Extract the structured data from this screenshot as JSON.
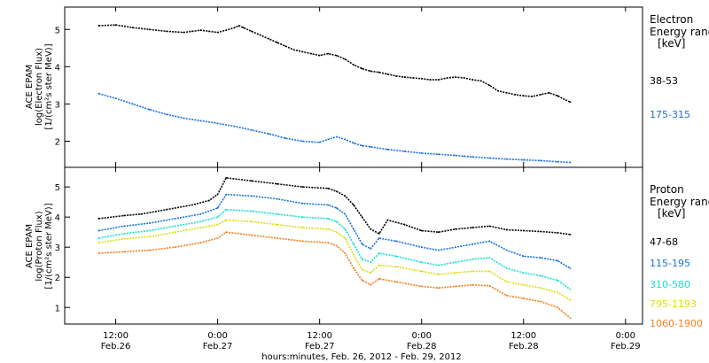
{
  "chart_data": [
    {
      "type": "scatter",
      "panel": "electron",
      "ylabel_lines": [
        "ACE EPAM",
        "log(Electron Flux)",
        "[1/(cm²s ster MeV)]"
      ],
      "ylim": [
        1.3,
        5.6
      ],
      "yticks": [
        2,
        3,
        4,
        5
      ],
      "legend_title_lines": [
        "Electron",
        "Energy range",
        "[keV]"
      ],
      "series": [
        {
          "name": "38-53",
          "color": "#000000",
          "points": [
            [
              0,
              5.1
            ],
            [
              4,
              5.12
            ],
            [
              8,
              5.05
            ],
            [
              12,
              5.0
            ],
            [
              16,
              4.95
            ],
            [
              20,
              4.92
            ],
            [
              22,
              4.95
            ],
            [
              24,
              4.98
            ],
            [
              26,
              4.95
            ],
            [
              28,
              4.92
            ],
            [
              30,
              4.98
            ],
            [
              32,
              5.05
            ],
            [
              33,
              5.1
            ],
            [
              34,
              5.05
            ],
            [
              36,
              4.95
            ],
            [
              38,
              4.85
            ],
            [
              40,
              4.75
            ],
            [
              42,
              4.65
            ],
            [
              44,
              4.55
            ],
            [
              46,
              4.45
            ],
            [
              48,
              4.4
            ],
            [
              50,
              4.35
            ],
            [
              52,
              4.3
            ],
            [
              54,
              4.35
            ],
            [
              56,
              4.3
            ],
            [
              58,
              4.2
            ],
            [
              60,
              4.05
            ],
            [
              62,
              3.95
            ],
            [
              64,
              3.88
            ],
            [
              66,
              3.85
            ],
            [
              68,
              3.8
            ],
            [
              70,
              3.75
            ],
            [
              72,
              3.72
            ],
            [
              74,
              3.7
            ],
            [
              76,
              3.68
            ],
            [
              78,
              3.65
            ],
            [
              80,
              3.65
            ],
            [
              82,
              3.7
            ],
            [
              84,
              3.72
            ],
            [
              86,
              3.7
            ],
            [
              88,
              3.65
            ],
            [
              90,
              3.62
            ],
            [
              92,
              3.5
            ],
            [
              94,
              3.35
            ],
            [
              96,
              3.3
            ],
            [
              98,
              3.25
            ],
            [
              100,
              3.22
            ],
            [
              102,
              3.2
            ],
            [
              104,
              3.25
            ],
            [
              106,
              3.3
            ],
            [
              108,
              3.22
            ],
            [
              110,
              3.1
            ],
            [
              111,
              3.05
            ]
          ]
        },
        {
          "name": "175-315",
          "color": "#1a73d9",
          "points": [
            [
              0,
              3.28
            ],
            [
              4,
              3.15
            ],
            [
              8,
              3.0
            ],
            [
              12,
              2.85
            ],
            [
              16,
              2.72
            ],
            [
              20,
              2.62
            ],
            [
              24,
              2.55
            ],
            [
              28,
              2.48
            ],
            [
              32,
              2.4
            ],
            [
              36,
              2.3
            ],
            [
              40,
              2.2
            ],
            [
              44,
              2.08
            ],
            [
              48,
              2.0
            ],
            [
              52,
              1.97
            ],
            [
              54,
              2.05
            ],
            [
              56,
              2.12
            ],
            [
              58,
              2.05
            ],
            [
              60,
              1.95
            ],
            [
              62,
              1.88
            ],
            [
              64,
              1.85
            ],
            [
              68,
              1.78
            ],
            [
              72,
              1.73
            ],
            [
              76,
              1.68
            ],
            [
              80,
              1.65
            ],
            [
              84,
              1.62
            ],
            [
              86,
              1.6
            ],
            [
              88,
              1.58
            ],
            [
              92,
              1.55
            ],
            [
              96,
              1.52
            ],
            [
              100,
              1.5
            ],
            [
              104,
              1.48
            ],
            [
              108,
              1.45
            ],
            [
              111,
              1.43
            ]
          ]
        }
      ]
    },
    {
      "type": "scatter",
      "panel": "proton",
      "ylabel_lines": [
        "ACE EPAM",
        "log(Proton Flux)",
        "[1/(cm²s ster MeV)]"
      ],
      "ylim": [
        0.45,
        5.65
      ],
      "yticks": [
        1,
        2,
        3,
        4,
        5
      ],
      "legend_title_lines": [
        "Proton",
        "Energy range",
        "[keV]"
      ],
      "series": [
        {
          "name": "47-68",
          "color": "#000000",
          "points": [
            [
              0,
              3.95
            ],
            [
              6,
              4.05
            ],
            [
              10,
              4.1
            ],
            [
              16,
              4.25
            ],
            [
              22,
              4.4
            ],
            [
              26,
              4.55
            ],
            [
              28,
              4.75
            ],
            [
              30,
              5.3
            ],
            [
              36,
              5.2
            ],
            [
              42,
              5.1
            ],
            [
              48,
              5.0
            ],
            [
              54,
              4.95
            ],
            [
              56,
              4.85
            ],
            [
              58,
              4.7
            ],
            [
              60,
              4.4
            ],
            [
              62,
              4.0
            ],
            [
              64,
              3.6
            ],
            [
              66,
              3.45
            ],
            [
              68,
              3.9
            ],
            [
              72,
              3.75
            ],
            [
              76,
              3.55
            ],
            [
              80,
              3.5
            ],
            [
              84,
              3.6
            ],
            [
              88,
              3.65
            ],
            [
              92,
              3.7
            ],
            [
              96,
              3.58
            ],
            [
              100,
              3.55
            ],
            [
              104,
              3.52
            ],
            [
              108,
              3.48
            ],
            [
              111,
              3.42
            ]
          ]
        },
        {
          "name": "115-195",
          "color": "#1a73d9",
          "points": [
            [
              0,
              3.55
            ],
            [
              6,
              3.7
            ],
            [
              12,
              3.8
            ],
            [
              18,
              3.95
            ],
            [
              24,
              4.1
            ],
            [
              28,
              4.3
            ],
            [
              30,
              4.75
            ],
            [
              36,
              4.7
            ],
            [
              42,
              4.6
            ],
            [
              48,
              4.45
            ],
            [
              54,
              4.4
            ],
            [
              56,
              4.3
            ],
            [
              58,
              4.1
            ],
            [
              60,
              3.6
            ],
            [
              62,
              3.1
            ],
            [
              64,
              2.95
            ],
            [
              66,
              3.3
            ],
            [
              70,
              3.2
            ],
            [
              76,
              3.0
            ],
            [
              80,
              2.9
            ],
            [
              84,
              3.0
            ],
            [
              88,
              3.1
            ],
            [
              92,
              3.2
            ],
            [
              96,
              2.9
            ],
            [
              100,
              2.7
            ],
            [
              104,
              2.65
            ],
            [
              108,
              2.55
            ],
            [
              111,
              2.3
            ]
          ]
        },
        {
          "name": "310-580",
          "color": "#19e0d0",
          "points": [
            [
              0,
              3.3
            ],
            [
              6,
              3.45
            ],
            [
              12,
              3.55
            ],
            [
              18,
              3.7
            ],
            [
              24,
              3.85
            ],
            [
              28,
              4.0
            ],
            [
              30,
              4.25
            ],
            [
              36,
              4.2
            ],
            [
              42,
              4.1
            ],
            [
              48,
              4.0
            ],
            [
              54,
              3.95
            ],
            [
              56,
              3.85
            ],
            [
              58,
              3.6
            ],
            [
              60,
              3.1
            ],
            [
              62,
              2.6
            ],
            [
              64,
              2.5
            ],
            [
              66,
              2.8
            ],
            [
              70,
              2.7
            ],
            [
              76,
              2.5
            ],
            [
              80,
              2.4
            ],
            [
              84,
              2.5
            ],
            [
              88,
              2.6
            ],
            [
              92,
              2.65
            ],
            [
              96,
              2.3
            ],
            [
              100,
              2.15
            ],
            [
              104,
              2.05
            ],
            [
              108,
              1.9
            ],
            [
              111,
              1.6
            ]
          ]
        },
        {
          "name": "795-1193",
          "color": "#d8e010",
          "points": [
            [
              0,
              3.15
            ],
            [
              6,
              3.28
            ],
            [
              12,
              3.35
            ],
            [
              18,
              3.5
            ],
            [
              24,
              3.65
            ],
            [
              28,
              3.75
            ],
            [
              30,
              3.9
            ],
            [
              36,
              3.85
            ],
            [
              42,
              3.75
            ],
            [
              48,
              3.65
            ],
            [
              54,
              3.6
            ],
            [
              56,
              3.5
            ],
            [
              58,
              3.3
            ],
            [
              60,
              2.75
            ],
            [
              62,
              2.25
            ],
            [
              64,
              2.15
            ],
            [
              66,
              2.4
            ],
            [
              70,
              2.35
            ],
            [
              76,
              2.2
            ],
            [
              80,
              2.1
            ],
            [
              84,
              2.15
            ],
            [
              88,
              2.2
            ],
            [
              92,
              2.2
            ],
            [
              96,
              1.85
            ],
            [
              100,
              1.75
            ],
            [
              104,
              1.65
            ],
            [
              108,
              1.5
            ],
            [
              111,
              1.25
            ]
          ]
        },
        {
          "name": "1060-1900",
          "color": "#f08020",
          "points": [
            [
              0,
              2.8
            ],
            [
              6,
              2.85
            ],
            [
              12,
              2.9
            ],
            [
              18,
              3.0
            ],
            [
              24,
              3.15
            ],
            [
              28,
              3.3
            ],
            [
              30,
              3.5
            ],
            [
              36,
              3.4
            ],
            [
              42,
              3.3
            ],
            [
              48,
              3.2
            ],
            [
              54,
              3.15
            ],
            [
              56,
              3.05
            ],
            [
              58,
              2.8
            ],
            [
              60,
              2.3
            ],
            [
              62,
              1.9
            ],
            [
              64,
              1.75
            ],
            [
              66,
              1.95
            ],
            [
              70,
              1.85
            ],
            [
              76,
              1.7
            ],
            [
              80,
              1.65
            ],
            [
              84,
              1.7
            ],
            [
              88,
              1.75
            ],
            [
              92,
              1.72
            ],
            [
              96,
              1.4
            ],
            [
              100,
              1.3
            ],
            [
              104,
              1.2
            ],
            [
              108,
              1.0
            ],
            [
              111,
              0.65
            ]
          ]
        }
      ]
    }
  ],
  "x_axis": {
    "xlim": [
      -8,
      128
    ],
    "ticks": [
      {
        "hours": 4,
        "time": "12:00",
        "date": "Feb.26"
      },
      {
        "hours": 28,
        "time": "0:00",
        "date": "Feb.27"
      },
      {
        "hours": 52,
        "time": "12:00",
        "date": "Feb.27"
      },
      {
        "hours": 76,
        "time": "0:00",
        "date": "Feb.28"
      },
      {
        "hours": 100,
        "time": "12:00",
        "date": "Feb.28"
      },
      {
        "hours": 124,
        "time": "0:00",
        "date": "Feb.29"
      }
    ],
    "title": "hours:minutes, Feb. 26, 2012 - Feb. 29, 2012"
  }
}
